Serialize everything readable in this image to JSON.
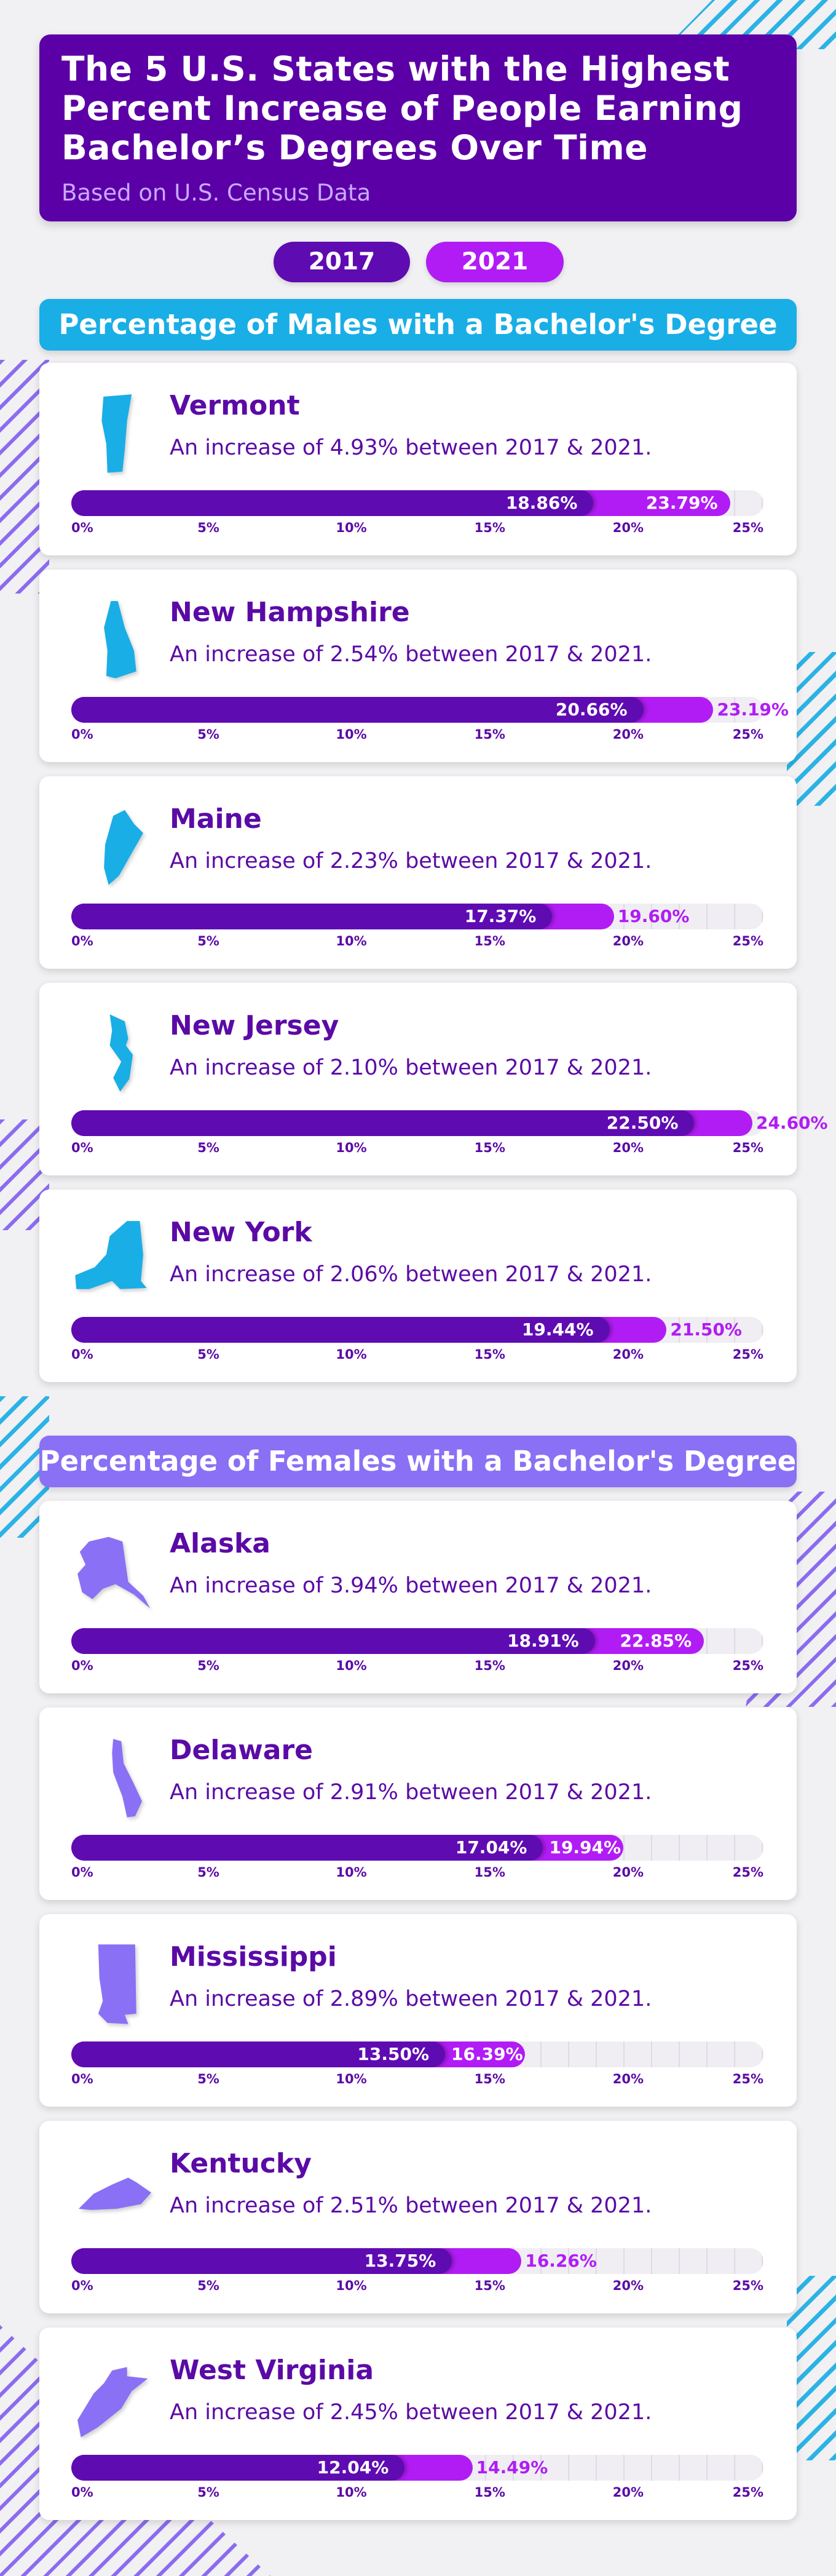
{
  "header": {
    "title_lines": [
      "The 5 U.S. States with the Highest",
      "Percent Increase of People Earning",
      "Bachelor’s Degrees Over Time"
    ],
    "subtitle": "Based on U.S. Census Data"
  },
  "legend": {
    "y2017": "2017",
    "y2021": "2021"
  },
  "colors": {
    "bar_2017": "#5f0bb2",
    "bar_2021": "#b11cf4",
    "male_accent": "#19aee6",
    "female_accent": "#8a70f5",
    "text": "#5b0aa6"
  },
  "chart_data": [
    {
      "type": "bar",
      "title": "Percentage of Males with a Bachelor's Degree",
      "categories": [
        "Vermont",
        "New Hampshire",
        "Maine",
        "New Jersey",
        "New York"
      ],
      "series": [
        {
          "name": "2017",
          "values": [
            18.86,
            20.66,
            17.37,
            22.5,
            19.44
          ]
        },
        {
          "name": "2021",
          "values": [
            23.79,
            23.19,
            19.6,
            24.6,
            21.5
          ]
        }
      ],
      "value_labels_2017": [
        "18.86%",
        "20.66%",
        "17.37%",
        "22.50%",
        "19.44%"
      ],
      "value_labels_2021": [
        "23.79%",
        "23.19%",
        "19.60%",
        "24.60%",
        "21.50%"
      ],
      "annotations": [
        "An increase of 4.93% between 2017 & 2021.",
        "An increase of 2.54% between 2017 & 2021.",
        "An increase of 2.23% between 2017 & 2021.",
        "An increase of 2.10% between 2017 & 2021.",
        "An increase of 2.06% between 2017 & 2021."
      ],
      "xlim": [
        0,
        25
      ],
      "tick_labels": [
        "0%",
        "5%",
        "10%",
        "15%",
        "20%",
        "25%"
      ],
      "icon_color": "#19aee6",
      "icons": [
        "vermont-icon",
        "new-hampshire-icon",
        "maine-icon",
        "new-jersey-icon",
        "new-york-icon"
      ]
    },
    {
      "type": "bar",
      "title": "Percentage of Females with a Bachelor's Degree",
      "categories": [
        "Alaska",
        "Delaware",
        "Mississippi",
        "Kentucky",
        "West Virginia"
      ],
      "series": [
        {
          "name": "2017",
          "values": [
            18.91,
            17.04,
            13.5,
            13.75,
            12.04
          ]
        },
        {
          "name": "2021",
          "values": [
            22.85,
            19.94,
            16.39,
            16.26,
            14.49
          ]
        }
      ],
      "value_labels_2017": [
        "18.91%",
        "17.04%",
        "13.50%",
        "13.75%",
        "12.04%"
      ],
      "value_labels_2021": [
        "22.85%",
        "19.94%",
        "16.39%",
        "16.26%",
        "14.49%"
      ],
      "annotations": [
        "An increase of 3.94% between 2017 & 2021.",
        "An increase of 2.91% between 2017 & 2021.",
        "An increase of 2.89% between 2017 & 2021.",
        "An increase of 2.51% between 2017 & 2021.",
        "An increase of 2.45% between 2017 & 2021."
      ],
      "xlim": [
        0,
        25
      ],
      "tick_labels": [
        "0%",
        "5%",
        "10%",
        "15%",
        "20%",
        "25%"
      ],
      "icon_color": "#8a70f5",
      "icons": [
        "alaska-icon",
        "delaware-icon",
        "mississippi-icon",
        "kentucky-icon",
        "west-virginia-icon"
      ]
    }
  ]
}
